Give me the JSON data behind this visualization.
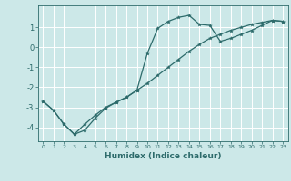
{
  "xlabel": "Humidex (Indice chaleur)",
  "background_color": "#cce8e8",
  "line_color": "#2d6b6b",
  "grid_color": "#ffffff",
  "xlim": [
    -0.5,
    23.5
  ],
  "ylim": [
    -4.7,
    2.1
  ],
  "yticks": [
    1,
    0,
    -1,
    -2,
    -3,
    -4
  ],
  "xticks": [
    0,
    1,
    2,
    3,
    4,
    5,
    6,
    7,
    8,
    9,
    10,
    11,
    12,
    13,
    14,
    15,
    16,
    17,
    18,
    19,
    20,
    21,
    22,
    23
  ],
  "curve1_x": [
    0,
    1,
    2,
    3,
    4,
    5,
    6,
    7,
    8,
    9,
    10,
    11,
    12,
    13,
    14,
    15,
    16,
    17,
    18,
    19,
    20,
    21,
    22,
    23
  ],
  "curve1_y": [
    -2.7,
    -3.15,
    -3.85,
    -4.35,
    -3.85,
    -3.4,
    -3.0,
    -2.75,
    -2.5,
    -2.15,
    -1.8,
    -1.4,
    -1.0,
    -0.6,
    -0.2,
    0.15,
    0.45,
    0.65,
    0.85,
    1.0,
    1.15,
    1.25,
    1.35,
    1.3
  ],
  "curve2_x": [
    0,
    1,
    2,
    3,
    4,
    5,
    6,
    7,
    8,
    9,
    10,
    11,
    12,
    13,
    14,
    15,
    16,
    17,
    18,
    19,
    20,
    21,
    22,
    23
  ],
  "curve2_y": [
    -2.7,
    -3.15,
    -3.85,
    -4.35,
    -4.15,
    -3.55,
    -3.05,
    -2.75,
    -2.5,
    -2.15,
    -0.3,
    0.95,
    1.3,
    1.5,
    1.6,
    1.15,
    1.1,
    0.3,
    0.45,
    0.65,
    0.85,
    1.1,
    1.35,
    1.3
  ]
}
